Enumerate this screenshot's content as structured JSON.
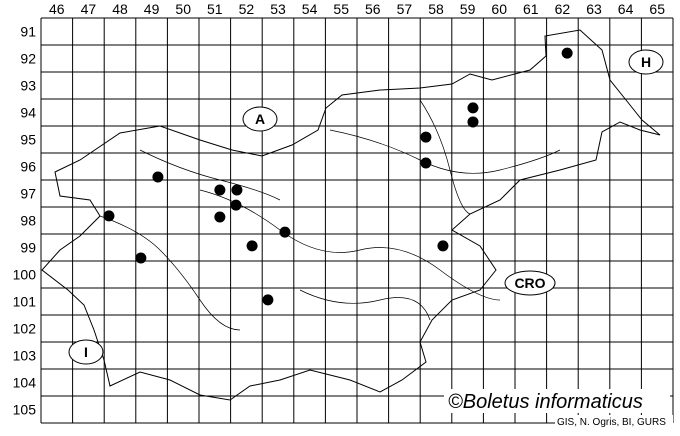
{
  "map": {
    "columns": [
      46,
      47,
      48,
      49,
      50,
      51,
      52,
      53,
      54,
      55,
      56,
      57,
      58,
      59,
      60,
      61,
      62,
      63,
      64,
      65
    ],
    "rows": [
      91,
      92,
      93,
      94,
      95,
      96,
      97,
      98,
      99,
      100,
      101,
      102,
      103,
      104,
      105
    ],
    "region_labels": {
      "austria": "A",
      "hungary": "H",
      "croatia": "CRO",
      "italy": "I"
    },
    "copyright": "©Boletus informaticus",
    "source": "GIS, N. Ogris, BI, GURS",
    "dot_color": "#000000",
    "records": [
      {
        "col": 62.65,
        "row": 92.3
      },
      {
        "col": 59.67,
        "row": 94.33
      },
      {
        "col": 59.67,
        "row": 94.85
      },
      {
        "col": 58.18,
        "row": 95.41
      },
      {
        "col": 58.18,
        "row": 96.37
      },
      {
        "col": 49.7,
        "row": 96.89
      },
      {
        "col": 51.66,
        "row": 97.37
      },
      {
        "col": 52.2,
        "row": 97.37
      },
      {
        "col": 52.17,
        "row": 97.93
      },
      {
        "col": 51.66,
        "row": 98.37
      },
      {
        "col": 48.15,
        "row": 98.33
      },
      {
        "col": 53.72,
        "row": 98.93
      },
      {
        "col": 52.68,
        "row": 99.44
      },
      {
        "col": 58.72,
        "row": 99.44
      },
      {
        "col": 49.16,
        "row": 99.89
      },
      {
        "col": 53.18,
        "row": 101.44
      }
    ]
  }
}
